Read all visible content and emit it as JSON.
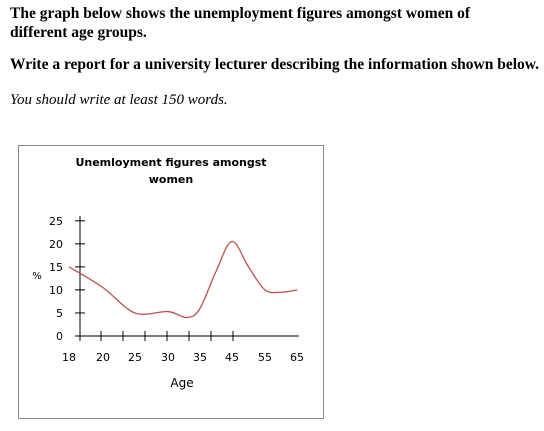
{
  "task": {
    "prompt": "The graph below shows the unemployment figures amongst women of different age groups.",
    "instruction": "Write a report for a university lecturer describing the information shown below.",
    "word_count_note": "You should write at least 150 words."
  },
  "colors": {
    "line": "#c0504d",
    "axis": "#000000",
    "frame": "#8a8a8a"
  },
  "chart_data": {
    "type": "line",
    "title_lines": [
      "Unemloyment figures amongst",
      "women"
    ],
    "xlabel": "Age",
    "ylabel": "%",
    "x_ticks": [
      "18",
      "20",
      "25",
      "30",
      "35",
      "45",
      "55",
      "65"
    ],
    "y_ticks": [
      "0",
      "5",
      "10",
      "15",
      "20",
      "25"
    ],
    "ylim": [
      0,
      25
    ],
    "grid": false,
    "legend": "none",
    "series": [
      {
        "values": [
          {
            "x": "18",
            "y": 15
          },
          {
            "x": "20",
            "y": 10.5
          },
          {
            "x": "25",
            "y": 5
          },
          {
            "x": "30",
            "y": 5.3
          },
          {
            "x": "33",
            "y": 4
          },
          {
            "x": "35",
            "y": 6
          },
          {
            "x": "40",
            "y": 14
          },
          {
            "x": "45",
            "y": 20.5
          },
          {
            "x": "50",
            "y": 15
          },
          {
            "x": "55",
            "y": 10
          },
          {
            "x": "60",
            "y": 9.5
          },
          {
            "x": "65",
            "y": 10
          }
        ]
      }
    ]
  }
}
